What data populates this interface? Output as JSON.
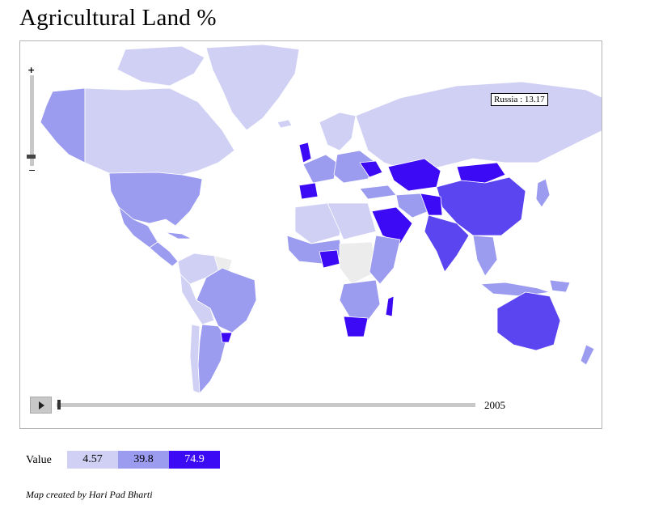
{
  "page": {
    "title": "Agricultural Land %"
  },
  "map": {
    "tooltip": "Russia : 13.17",
    "zoom_in": "+",
    "zoom_out": "−",
    "year": "2005"
  },
  "legend": {
    "label": "Value",
    "items": [
      {
        "value": "4.57",
        "color": "#d0d0f4",
        "text_color": "#000000"
      },
      {
        "value": "39.8",
        "color": "#9b9bf0",
        "text_color": "#000000"
      },
      {
        "value": "74.9",
        "color": "#3d0af5",
        "text_color": "#ffffff"
      }
    ]
  },
  "credit": "Map created by Hari Pad Bharti",
  "colors": {
    "low": "#d0d0f4",
    "mid": "#9b9bf0",
    "high": "#3d0af5",
    "nodata": "#ececec"
  }
}
